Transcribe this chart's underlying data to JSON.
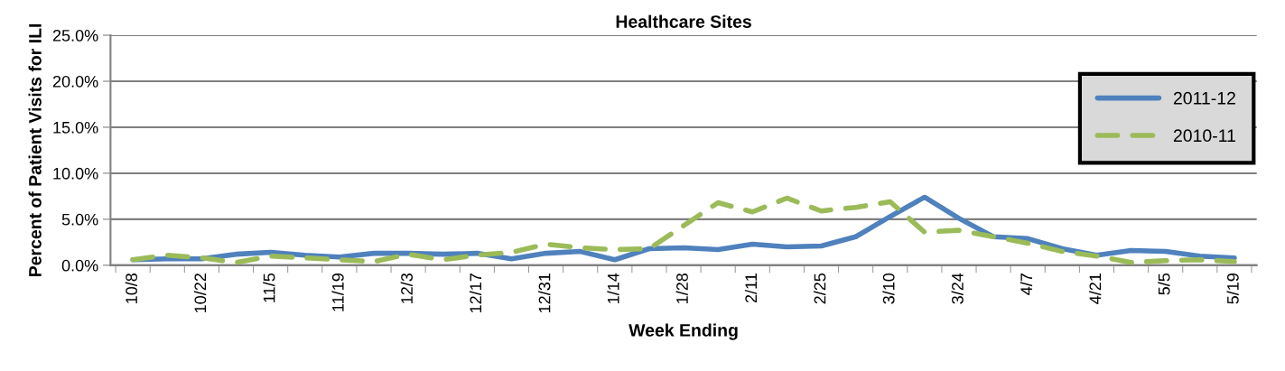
{
  "chart_data": {
    "type": "line",
    "title": "Healthcare Sites",
    "xlabel": "Week Ending",
    "ylabel": "Percent of Patient Visits for ILI",
    "categories": [
      "10/8",
      null,
      "10/22",
      null,
      "11/5",
      null,
      "11/19",
      null,
      "12/3",
      null,
      "12/17",
      null,
      "12/31",
      null,
      "1/14",
      null,
      "1/28",
      null,
      "2/11",
      null,
      "2/25",
      null,
      "3/10",
      null,
      "3/24",
      null,
      "4/7",
      null,
      "4/21",
      null,
      "5/5",
      null,
      "5/19"
    ],
    "series": [
      {
        "name": "2011-12",
        "color": "#4f81bd",
        "line_style": "solid",
        "values": [
          0.6,
          0.7,
          0.7,
          1.2,
          1.4,
          1.1,
          0.9,
          1.3,
          1.3,
          1.2,
          1.3,
          0.7,
          1.3,
          1.5,
          0.6,
          1.8,
          1.9,
          1.7,
          2.3,
          2.0,
          2.1,
          3.1,
          5.3,
          7.4,
          5.1,
          3.1,
          2.9,
          1.8,
          1.1,
          1.6,
          1.5,
          1.0,
          0.8
        ]
      },
      {
        "name": "2010-11",
        "color": "#9bbb59",
        "line_style": "dashed",
        "values": [
          0.6,
          1.1,
          0.8,
          0.3,
          1.0,
          0.8,
          0.6,
          0.4,
          1.2,
          0.6,
          1.1,
          1.4,
          2.3,
          1.9,
          1.7,
          1.8,
          4.3,
          6.8,
          5.8,
          7.3,
          5.9,
          6.3,
          6.9,
          3.6,
          3.8,
          3.1,
          2.4,
          1.5,
          1.0,
          0.3,
          0.5,
          0.6,
          0.4
        ]
      }
    ],
    "ylim": [
      0,
      25
    ],
    "yticks": [
      {
        "value": 0,
        "label": "0.0%"
      },
      {
        "value": 5,
        "label": "5.0%"
      },
      {
        "value": 10,
        "label": "10.0%"
      },
      {
        "value": 15,
        "label": "15.0%"
      },
      {
        "value": 20,
        "label": "20.0%"
      },
      {
        "value": 25,
        "label": "25.0%"
      }
    ],
    "grid": "y",
    "legend": "top right",
    "marker": "none"
  }
}
